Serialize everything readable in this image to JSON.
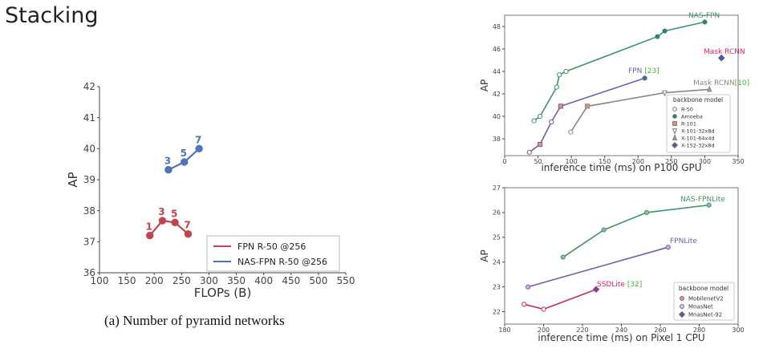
{
  "slide": {
    "title": "Stacking"
  },
  "chart_data": [
    {
      "type": "line",
      "xlabel": "FLOPs (B)",
      "ylabel": "AP",
      "xlim": [
        100,
        550
      ],
      "ylim": [
        36,
        42
      ],
      "xticks": [
        100,
        150,
        200,
        250,
        300,
        350,
        400,
        450,
        500,
        550
      ],
      "yticks": [
        36,
        37,
        38,
        39,
        40,
        41,
        42
      ],
      "grid": false,
      "legend_position": "lower-right",
      "caption": "(a) Number of pyramid networks",
      "series": [
        {
          "name": "FPN R-50 @256",
          "color": "#c1444e",
          "points": [
            {
              "x": 192,
              "y": 37.2,
              "label": "1"
            },
            {
              "x": 215,
              "y": 37.68,
              "label": "3"
            },
            {
              "x": 238,
              "y": 37.62,
              "label": "5"
            },
            {
              "x": 262,
              "y": 37.25,
              "label": "7"
            }
          ]
        },
        {
          "name": "NAS-FPN R-50 @256",
          "color": "#4f75b5",
          "points": [
            {
              "x": 226,
              "y": 39.32,
              "label": "3"
            },
            {
              "x": 255,
              "y": 39.57,
              "label": "5"
            },
            {
              "x": 282,
              "y": 40.0,
              "label": "7"
            }
          ]
        }
      ]
    },
    {
      "type": "line",
      "xlabel": "inference time (ms) on P100 GPU",
      "ylabel": "AP",
      "xlim": [
        0,
        350
      ],
      "ylim": [
        36.5,
        49
      ],
      "xticks": [
        0,
        50,
        100,
        150,
        200,
        250,
        300,
        350
      ],
      "yticks": [
        38,
        40,
        42,
        44,
        46,
        48
      ],
      "grid": false,
      "legend_title": "backbone model",
      "legend_position": "lower-right",
      "legend_entries": [
        {
          "label": "R-50",
          "marker": "circle",
          "fill": "#ffffff"
        },
        {
          "label": "Amoeba",
          "marker": "circle",
          "fill": "#2a7a8c"
        },
        {
          "label": "R-101",
          "marker": "square",
          "fill": "#e8926a"
        },
        {
          "label": "X-101-32x8d",
          "marker": "triangle-down",
          "fill": "#ffffff"
        },
        {
          "label": "X-101-64x4d",
          "marker": "triangle-up",
          "fill": "#8ea7b8"
        },
        {
          "label": "X-152-32x8d",
          "marker": "diamond",
          "fill": "#4a5aa8"
        }
      ],
      "series": [
        {
          "name": "NAS-FPN",
          "color": "#3d9466",
          "points": [
            {
              "x": 44,
              "y": 39.6,
              "marker": "circle",
              "fill": "#ffffff"
            },
            {
              "x": 53,
              "y": 40.0,
              "marker": "circle",
              "fill": "#ffffff"
            },
            {
              "x": 78,
              "y": 42.6,
              "marker": "circle",
              "fill": "#ffffff"
            },
            {
              "x": 82,
              "y": 43.7,
              "marker": "circle",
              "fill": "#ffffff"
            },
            {
              "x": 92,
              "y": 44.0,
              "marker": "circle",
              "fill": "#ffffff"
            },
            {
              "x": 229,
              "y": 47.1,
              "marker": "circle",
              "fill": "#2a7a8c"
            },
            {
              "x": 240,
              "y": 47.6,
              "marker": "circle",
              "fill": "#2a7a8c"
            },
            {
              "x": 300,
              "y": 48.4,
              "marker": "circle",
              "fill": "#2a7a8c"
            }
          ]
        },
        {
          "name": "FPN",
          "label_suffix": "[23]",
          "color": "#6f5fa8",
          "points": [
            {
              "x": 37,
              "y": 36.8,
              "marker": "circle",
              "fill": "#ffffff"
            },
            {
              "x": 53,
              "y": 37.5,
              "marker": "square",
              "fill": "#e8926a"
            },
            {
              "x": 70,
              "y": 39.5,
              "marker": "circle",
              "fill": "#ffffff"
            },
            {
              "x": 84,
              "y": 40.9,
              "marker": "square",
              "fill": "#e8926a"
            },
            {
              "x": 210,
              "y": 43.4,
              "marker": "circle",
              "fill": "#2a7a8c"
            }
          ]
        },
        {
          "name": "Mask RCNN",
          "label_suffix": "[10]",
          "color": "#888888",
          "points": [
            {
              "x": 99,
              "y": 38.6,
              "marker": "circle",
              "fill": "#ffffff"
            },
            {
              "x": 124,
              "y": 40.9,
              "marker": "square",
              "fill": "#e8926a"
            },
            {
              "x": 240,
              "y": 42.1,
              "marker": "triangle-down",
              "fill": "#ffffff"
            },
            {
              "x": 307,
              "y": 42.4,
              "marker": "triangle-up",
              "fill": "#8ea7b8"
            }
          ]
        },
        {
          "name": "Mask RCNN",
          "color": "#d0246e",
          "points": [
            {
              "x": 325,
              "y": 45.2,
              "marker": "diamond",
              "fill": "#4a5aa8"
            }
          ]
        }
      ]
    },
    {
      "type": "line",
      "xlabel": "inference time (ms) on Pixel 1 CPU",
      "ylabel": "AP",
      "xlim": [
        180,
        300
      ],
      "ylim": [
        21.5,
        27
      ],
      "xticks": [
        180,
        200,
        220,
        240,
        260,
        280,
        300
      ],
      "yticks": [
        22,
        23,
        24,
        25,
        26,
        27
      ],
      "grid": false,
      "legend_title": "backbone model",
      "legend_position": "lower-right",
      "legend_entries": [
        {
          "label": "MobilenetV2",
          "marker": "circle",
          "fill": "#e8926a"
        },
        {
          "label": "MnasNet",
          "marker": "circle",
          "fill": "#b9c7e8"
        },
        {
          "label": "MnasNet-92",
          "marker": "diamond",
          "fill": "#4a5aa8"
        }
      ],
      "series": [
        {
          "name": "NAS-FPNLite",
          "color": "#3d9466",
          "points": [
            {
              "x": 210,
              "y": 24.2
            },
            {
              "x": 231,
              "y": 25.3
            },
            {
              "x": 253,
              "y": 26.0
            },
            {
              "x": 285,
              "y": 26.3
            }
          ]
        },
        {
          "name": "FPNLite",
          "color": "#6f5fa8",
          "points": [
            {
              "x": 192,
              "y": 23.0
            },
            {
              "x": 264,
              "y": 24.6
            }
          ]
        },
        {
          "name": "SSDLite",
          "label_suffix": "[32]",
          "color": "#d0246e",
          "points": [
            {
              "x": 190,
              "y": 22.3,
              "fill": "#ffffff"
            },
            {
              "x": 200,
              "y": 22.1,
              "fill": "#ffffff"
            },
            {
              "x": 227,
              "y": 22.9,
              "marker": "diamond",
              "fill": "#4a5aa8"
            }
          ]
        }
      ]
    }
  ]
}
